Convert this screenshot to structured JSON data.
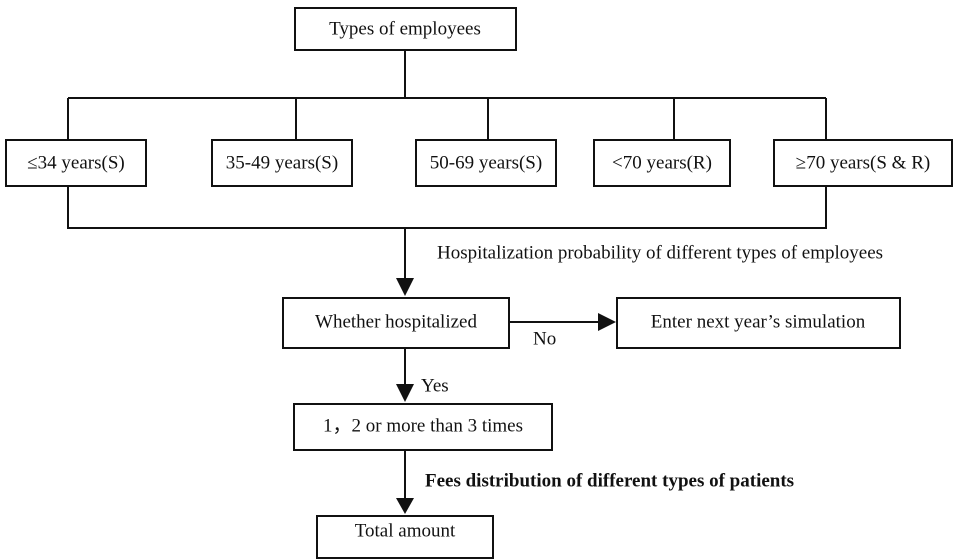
{
  "nodes": [
    {
      "label": "Types of employees"
    },
    {
      "label": "≤34 years(S)"
    },
    {
      "label": "35-49 years(S)"
    },
    {
      "label": "50-69 years(S)"
    },
    {
      "label": "<70 years(R)"
    },
    {
      "label": "≥70 years(S & R)"
    },
    {
      "label": "Whether hospitalized"
    },
    {
      "label": "Enter next year’s  simulation"
    },
    {
      "label": "1，2 or more than 3 times"
    },
    {
      "label": "Total amount"
    }
  ],
  "edges": [
    {
      "label": "Hospitalization probability of different types of employees"
    },
    {
      "label": "No"
    },
    {
      "label": "Yes"
    },
    {
      "label": "Fees distribution of different types of patients"
    }
  ]
}
